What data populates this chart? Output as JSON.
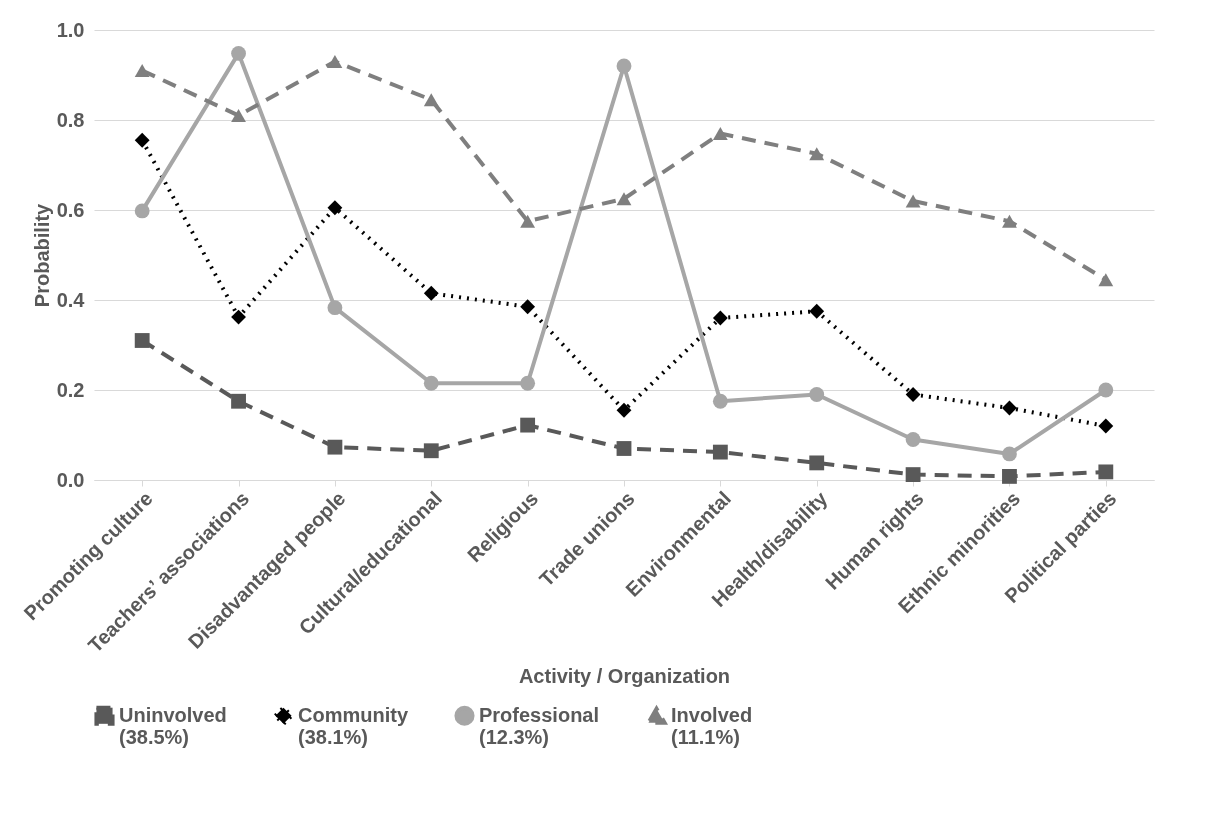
{
  "chart_data": {
    "type": "line",
    "xlabel": "Activity / Organization",
    "ylabel": "Probability",
    "categories": [
      "Promoting culture",
      "Teachers’ associations",
      "Disadvantaged people",
      "Cultural/educational",
      "Religious",
      "Trade unions",
      "Environmental",
      "Health/disability",
      "Human rights",
      "Ethnic minorities",
      "Political parties"
    ],
    "series": [
      {
        "name": "Uninvolved (38.5%)",
        "color": "#595959",
        "marker": "square",
        "line_style": "dashed",
        "values": [
          0.31,
          0.175,
          0.073,
          0.065,
          0.122,
          0.07,
          0.062,
          0.038,
          0.012,
          0.008,
          0.018
        ]
      },
      {
        "name": "Community (38.1%)",
        "color": "#000000",
        "marker": "diamond",
        "line_style": "dotted",
        "values": [
          0.755,
          0.362,
          0.605,
          0.415,
          0.385,
          0.155,
          0.36,
          0.375,
          0.19,
          0.16,
          0.12
        ]
      },
      {
        "name": "Professional (12.3%)",
        "color": "#a6a6a6",
        "marker": "circle",
        "line_style": "solid",
        "values": [
          0.598,
          0.948,
          0.383,
          0.215,
          0.215,
          0.92,
          0.175,
          0.19,
          0.09,
          0.058,
          0.2
        ]
      },
      {
        "name": "Involved (11.1%)",
        "color": "#7f7f7f",
        "marker": "triangle",
        "line_style": "dashed",
        "values": [
          0.91,
          0.81,
          0.93,
          0.845,
          0.575,
          0.625,
          0.77,
          0.725,
          0.62,
          0.575,
          0.445
        ]
      }
    ],
    "ylim": [
      0,
      1
    ],
    "yticks": [
      {
        "value": 0,
        "label": "0.0"
      },
      {
        "value": 0.2,
        "label": "0.2"
      },
      {
        "value": 0.4,
        "label": "0.4"
      },
      {
        "value": 0.6,
        "label": "0.6"
      },
      {
        "value": 0.8,
        "label": "0.8"
      },
      {
        "value": 1,
        "label": "1.0"
      }
    ],
    "grid": "y",
    "legend": "bottom"
  }
}
